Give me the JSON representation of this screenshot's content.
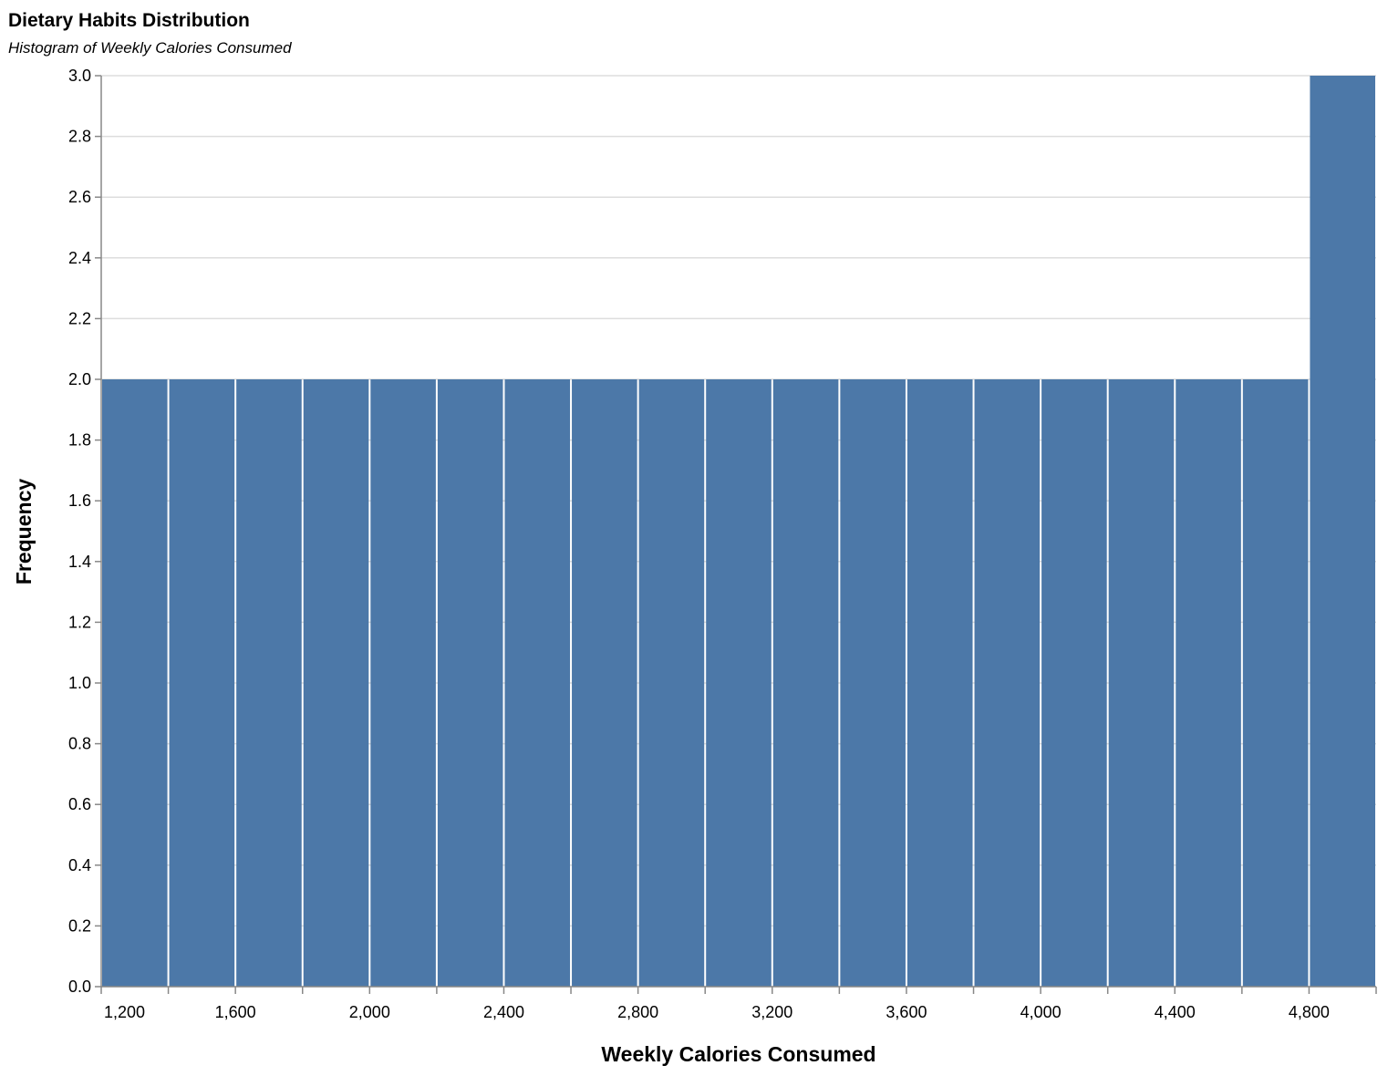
{
  "chart_data": {
    "type": "bar",
    "title": "Dietary Habits Distribution",
    "subtitle": "Histogram of Weekly Calories Consumed",
    "xlabel": "Weekly Calories Consumed",
    "ylabel": "Frequency",
    "bin_width": 200,
    "xlim": [
      1200,
      5000
    ],
    "ylim": [
      0,
      3
    ],
    "x_ticks": [
      "1,200",
      "1,600",
      "2,000",
      "2,400",
      "2,800",
      "3,200",
      "3,600",
      "4,000",
      "4,400",
      "4,800"
    ],
    "y_ticks": [
      "0.0",
      "0.2",
      "0.4",
      "0.6",
      "0.8",
      "1.0",
      "1.2",
      "1.4",
      "1.6",
      "1.8",
      "2.0",
      "2.2",
      "2.4",
      "2.6",
      "2.8",
      "3.0"
    ],
    "bins": [
      {
        "start": 1200,
        "end": 1400,
        "count": 2
      },
      {
        "start": 1400,
        "end": 1600,
        "count": 2
      },
      {
        "start": 1600,
        "end": 1800,
        "count": 2
      },
      {
        "start": 1800,
        "end": 2000,
        "count": 2
      },
      {
        "start": 2000,
        "end": 2200,
        "count": 2
      },
      {
        "start": 2200,
        "end": 2400,
        "count": 2
      },
      {
        "start": 2400,
        "end": 2600,
        "count": 2
      },
      {
        "start": 2600,
        "end": 2800,
        "count": 2
      },
      {
        "start": 2800,
        "end": 3000,
        "count": 2
      },
      {
        "start": 3000,
        "end": 3200,
        "count": 2
      },
      {
        "start": 3200,
        "end": 3400,
        "count": 2
      },
      {
        "start": 3400,
        "end": 3600,
        "count": 2
      },
      {
        "start": 3600,
        "end": 3800,
        "count": 2
      },
      {
        "start": 3800,
        "end": 4000,
        "count": 2
      },
      {
        "start": 4000,
        "end": 4200,
        "count": 2
      },
      {
        "start": 4200,
        "end": 4400,
        "count": 2
      },
      {
        "start": 4400,
        "end": 4600,
        "count": 2
      },
      {
        "start": 4600,
        "end": 4800,
        "count": 2
      },
      {
        "start": 4800,
        "end": 5000,
        "count": 3
      }
    ],
    "grid": true,
    "bar_color": "#4c78a8"
  }
}
